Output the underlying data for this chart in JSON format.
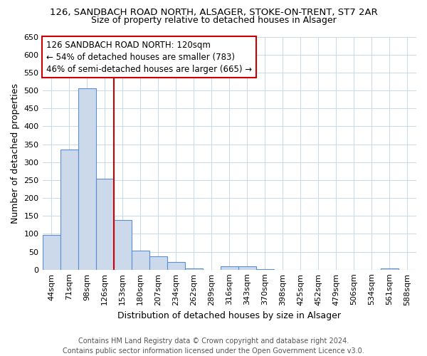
{
  "title_line1": "126, SANDBACH ROAD NORTH, ALSAGER, STOKE-ON-TRENT, ST7 2AR",
  "title_line2": "Size of property relative to detached houses in Alsager",
  "xlabel": "Distribution of detached houses by size in Alsager",
  "ylabel": "Number of detached properties",
  "bar_labels": [
    "44sqm",
    "71sqm",
    "98sqm",
    "126sqm",
    "153sqm",
    "180sqm",
    "207sqm",
    "234sqm",
    "262sqm",
    "289sqm",
    "316sqm",
    "343sqm",
    "370sqm",
    "398sqm",
    "425sqm",
    "452sqm",
    "479sqm",
    "506sqm",
    "534sqm",
    "561sqm",
    "588sqm"
  ],
  "bar_values": [
    97,
    335,
    505,
    254,
    138,
    53,
    38,
    22,
    4,
    0,
    10,
    10,
    2,
    0,
    0,
    0,
    0,
    0,
    0,
    4,
    0
  ],
  "bar_color": "#ccd9ea",
  "bar_edge_color": "#5b8fd4",
  "background_color": "#ffffff",
  "grid_color": "#c8d8e8",
  "annotation_text": "126 SANDBACH ROAD NORTH: 120sqm\n← 54% of detached houses are smaller (783)\n46% of semi-detached houses are larger (665) →",
  "annotation_box_color": "#ffffff",
  "annotation_box_edge_color": "#cc0000",
  "vline_color": "#cc0000",
  "vline_x": 3.5,
  "ylim": [
    0,
    650
  ],
  "yticks": [
    0,
    50,
    100,
    150,
    200,
    250,
    300,
    350,
    400,
    450,
    500,
    550,
    600,
    650
  ],
  "footer_text": "Contains HM Land Registry data © Crown copyright and database right 2024.\nContains public sector information licensed under the Open Government Licence v3.0.",
  "title_fontsize": 9.5,
  "subtitle_fontsize": 9,
  "axis_label_fontsize": 9,
  "tick_fontsize": 8,
  "annotation_fontsize": 8.5,
  "footer_fontsize": 7
}
